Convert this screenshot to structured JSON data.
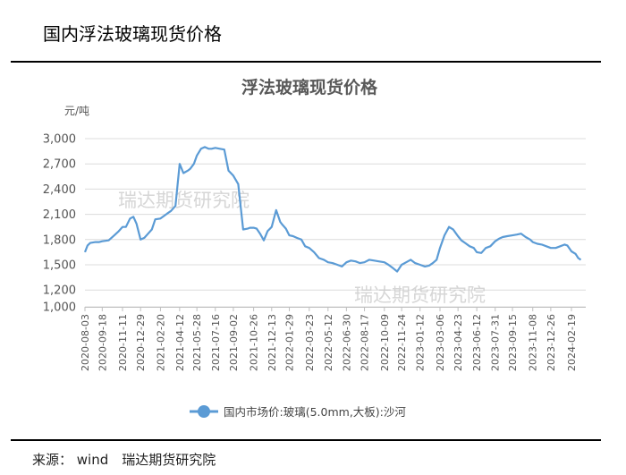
{
  "page": {
    "title": "国内浮法玻璃现货价格",
    "source": "来源： wind　瑞达期货研究院"
  },
  "watermark": "瑞达期货研究院",
  "chart_data": {
    "type": "line",
    "title": "浮法玻璃现货价格",
    "unit_label": "元/吨",
    "ylim": [
      1000,
      3000
    ],
    "yticks": [
      1000,
      1200,
      1500,
      1800,
      2100,
      2400,
      2700,
      3000
    ],
    "x_tick_labels": [
      "2020-08-03",
      "2020-09-18",
      "2020-11-11",
      "2020-12-29",
      "2021-02-20",
      "2021-04-12",
      "2021-05-28",
      "2021-07-16",
      "2021-09-02",
      "2021-10-26",
      "2021-12-13",
      "2022-01-29",
      "2022-03-23",
      "2022-05-12",
      "2022-06-30",
      "2022-08-17",
      "2022-10-09",
      "2022-11-24",
      "2023-01-12",
      "2023-03-06",
      "2023-04-23",
      "2023-06-12",
      "2023-07-31",
      "2023-09-15",
      "2023-11-08",
      "2023-12-26",
      "2024-02-19"
    ],
    "legend_position": "bottom",
    "grid": true,
    "line_color": "#5b9bd5",
    "series": [
      {
        "name": "国内市场价:玻璃(5.0mm,大板):沙河",
        "x": [
          "2020-08-03",
          "2020-08-10",
          "2020-08-17",
          "2020-08-31",
          "2020-09-10",
          "2020-09-18",
          "2020-10-05",
          "2020-10-20",
          "2020-11-01",
          "2020-11-11",
          "2020-11-20",
          "2020-12-01",
          "2020-12-10",
          "2020-12-18",
          "2020-12-29",
          "2021-01-08",
          "2021-01-18",
          "2021-01-28",
          "2021-02-06",
          "2021-02-20",
          "2021-03-01",
          "2021-03-10",
          "2021-03-20",
          "2021-04-01",
          "2021-04-12",
          "2021-04-22",
          "2021-05-04",
          "2021-05-10",
          "2021-05-20",
          "2021-05-28",
          "2021-06-08",
          "2021-06-18",
          "2021-06-28",
          "2021-07-06",
          "2021-07-16",
          "2021-07-28",
          "2021-08-09",
          "2021-08-20",
          "2021-09-02",
          "2021-09-15",
          "2021-09-28",
          "2021-10-10",
          "2021-10-16",
          "2021-10-26",
          "2021-11-03",
          "2021-11-12",
          "2021-11-22",
          "2021-12-02",
          "2021-12-13",
          "2021-12-25",
          "2022-01-05",
          "2022-01-10",
          "2022-01-20",
          "2022-01-29",
          "2022-02-08",
          "2022-02-18",
          "2022-03-02",
          "2022-03-12",
          "2022-03-23",
          "2022-04-05",
          "2022-04-18",
          "2022-05-01",
          "2022-05-12",
          "2022-05-24",
          "2022-06-06",
          "2022-06-18",
          "2022-06-30",
          "2022-07-12",
          "2022-07-24",
          "2022-08-05",
          "2022-08-17",
          "2022-08-30",
          "2022-09-12",
          "2022-09-24",
          "2022-10-09",
          "2022-10-20",
          "2022-11-01",
          "2022-11-12",
          "2022-11-24",
          "2022-12-06",
          "2022-12-18",
          "2022-12-30",
          "2023-01-12",
          "2023-01-25",
          "2023-02-05",
          "2023-02-15",
          "2023-02-25",
          "2023-03-06",
          "2023-03-18",
          "2023-03-30",
          "2023-04-10",
          "2023-04-23",
          "2023-05-02",
          "2023-05-12",
          "2023-05-24",
          "2023-06-04",
          "2023-06-12",
          "2023-06-24",
          "2023-07-06",
          "2023-07-18",
          "2023-07-31",
          "2023-08-10",
          "2023-08-20",
          "2023-09-01",
          "2023-09-15",
          "2023-09-27",
          "2023-10-08",
          "2023-10-20",
          "2023-11-01",
          "2023-11-08",
          "2023-11-20",
          "2023-12-02",
          "2023-12-14",
          "2023-12-26",
          "2024-01-08",
          "2024-01-20",
          "2024-02-01",
          "2024-02-08",
          "2024-02-19",
          "2024-03-01",
          "2024-03-08",
          "2024-03-15"
        ],
        "values": [
          1650,
          1730,
          1760,
          1770,
          1770,
          1780,
          1790,
          1850,
          1900,
          1950,
          1950,
          2050,
          2070,
          1990,
          1800,
          1820,
          1870,
          1920,
          2040,
          2050,
          2080,
          2110,
          2140,
          2200,
          2700,
          2590,
          2620,
          2640,
          2700,
          2800,
          2880,
          2900,
          2880,
          2880,
          2890,
          2880,
          2870,
          2620,
          2560,
          2460,
          1920,
          1930,
          1940,
          1940,
          1930,
          1870,
          1790,
          1900,
          1950,
          2150,
          2010,
          1980,
          1930,
          1850,
          1840,
          1820,
          1800,
          1720,
          1700,
          1650,
          1580,
          1560,
          1530,
          1520,
          1500,
          1480,
          1530,
          1550,
          1540,
          1520,
          1530,
          1560,
          1550,
          1540,
          1530,
          1500,
          1460,
          1420,
          1500,
          1530,
          1560,
          1520,
          1500,
          1480,
          1490,
          1520,
          1560,
          1700,
          1850,
          1950,
          1920,
          1840,
          1790,
          1760,
          1720,
          1700,
          1650,
          1640,
          1700,
          1720,
          1780,
          1810,
          1830,
          1840,
          1850,
          1860,
          1870,
          1830,
          1800,
          1770,
          1750,
          1740,
          1720,
          1700,
          1700,
          1720,
          1740,
          1730,
          1660,
          1630,
          1580,
          1560
        ]
      }
    ]
  }
}
